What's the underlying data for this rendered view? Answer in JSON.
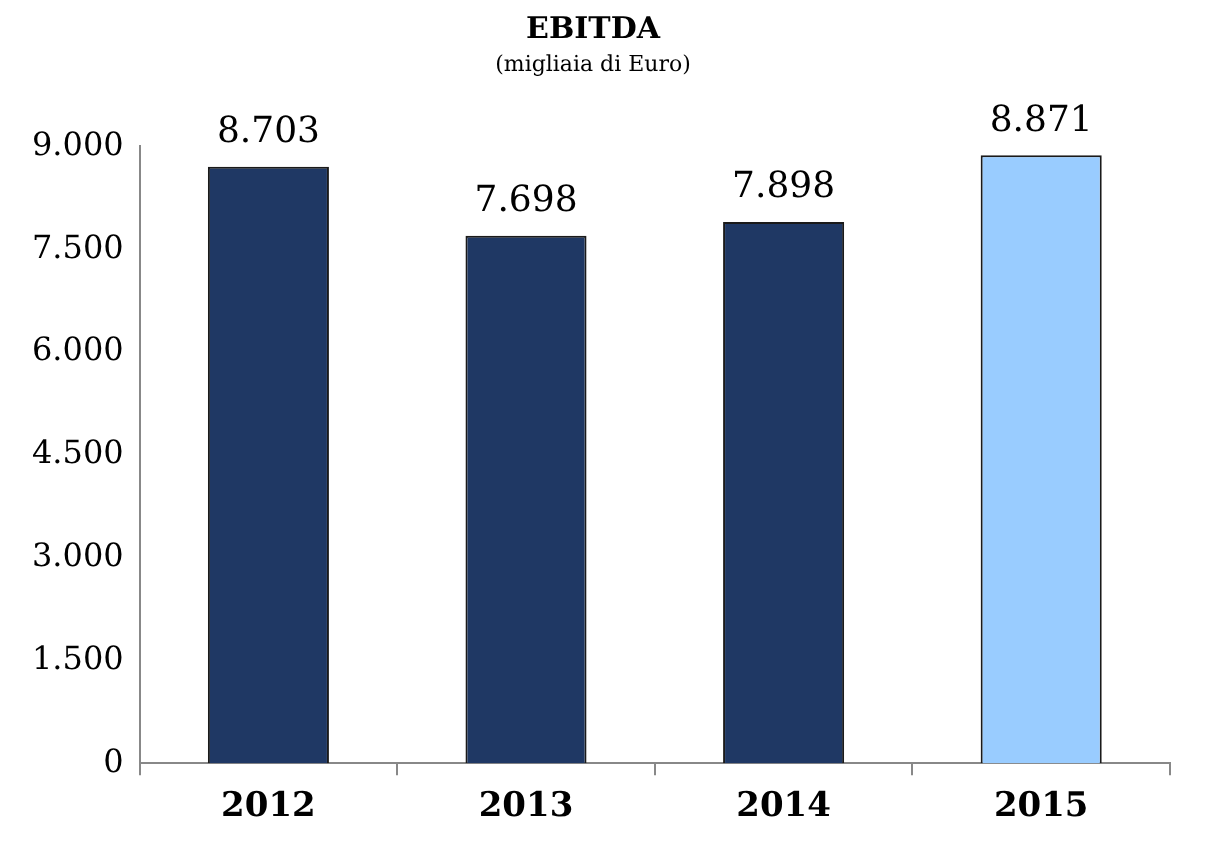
{
  "chart_data": {
    "type": "bar",
    "title": "EBITDA",
    "subtitle": "(migliaia di Euro)",
    "categories": [
      "2012",
      "2013",
      "2014",
      "2015"
    ],
    "values": [
      8703,
      7698,
      7898,
      8871
    ],
    "colors": [
      "#1f3864",
      "#1f3864",
      "#1f3864",
      "#99ccff"
    ],
    "value_labels": [
      "8.703",
      "7.698",
      "7.898",
      "8.871"
    ],
    "ylim": [
      0,
      9000
    ],
    "yticks": [
      {
        "value": 0,
        "label": "0"
      },
      {
        "value": 1500,
        "label": "1.500"
      },
      {
        "value": 3000,
        "label": "3.000"
      },
      {
        "value": 4500,
        "label": "4.500"
      },
      {
        "value": 6000,
        "label": "6.000"
      },
      {
        "value": 7500,
        "label": "7.500"
      },
      {
        "value": 9000,
        "label": "9.000"
      }
    ],
    "grid": false,
    "legend": false
  }
}
